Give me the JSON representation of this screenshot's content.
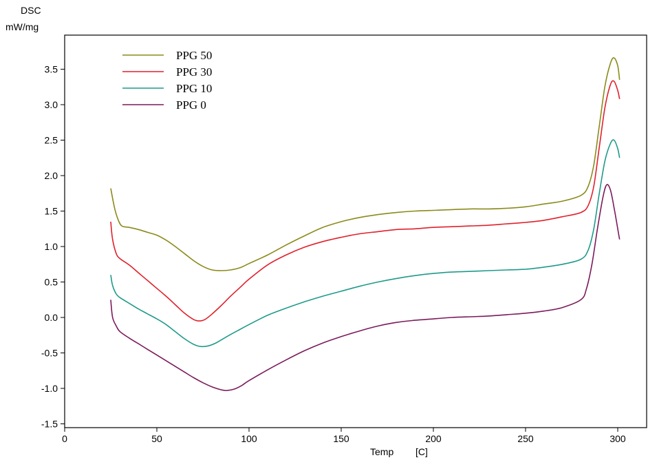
{
  "chart_data": {
    "type": "line",
    "ylabel_line1": "DSC",
    "ylabel_line2": "mW/mg",
    "xlabel_left": "Temp",
    "xlabel_unit": "[C]",
    "xlim": [
      0,
      320
    ],
    "ylim": [
      -1.55,
      3.95
    ],
    "xticks": [
      0,
      50,
      100,
      150,
      200,
      250,
      300
    ],
    "yticks": [
      -1.5,
      -1.0,
      -0.5,
      0.0,
      0.5,
      1.0,
      1.5,
      2.0,
      2.5,
      3.0,
      3.5
    ],
    "ytick_labels": [
      "-1.5",
      "-1.0",
      "-0.5",
      "0.0",
      "0.5",
      "1.0",
      "1.5",
      "2.0",
      "2.5",
      "3.0",
      "3.5"
    ],
    "grid": false,
    "legend_position": "top-left",
    "series": [
      {
        "name": "PPG 50",
        "color": "#8a8a1a",
        "points": [
          [
            25,
            1.82
          ],
          [
            27,
            1.55
          ],
          [
            29,
            1.38
          ],
          [
            31,
            1.29
          ],
          [
            35,
            1.27
          ],
          [
            40,
            1.24
          ],
          [
            45,
            1.2
          ],
          [
            50,
            1.16
          ],
          [
            55,
            1.09
          ],
          [
            60,
            1.0
          ],
          [
            65,
            0.9
          ],
          [
            70,
            0.8
          ],
          [
            75,
            0.72
          ],
          [
            80,
            0.67
          ],
          [
            85,
            0.66
          ],
          [
            90,
            0.67
          ],
          [
            95,
            0.7
          ],
          [
            100,
            0.76
          ],
          [
            110,
            0.88
          ],
          [
            120,
            1.02
          ],
          [
            130,
            1.15
          ],
          [
            140,
            1.27
          ],
          [
            150,
            1.35
          ],
          [
            160,
            1.41
          ],
          [
            170,
            1.45
          ],
          [
            180,
            1.48
          ],
          [
            190,
            1.5
          ],
          [
            200,
            1.51
          ],
          [
            210,
            1.52
          ],
          [
            220,
            1.53
          ],
          [
            230,
            1.53
          ],
          [
            240,
            1.54
          ],
          [
            250,
            1.56
          ],
          [
            260,
            1.6
          ],
          [
            270,
            1.64
          ],
          [
            280,
            1.72
          ],
          [
            284,
            1.85
          ],
          [
            287,
            2.15
          ],
          [
            290,
            2.7
          ],
          [
            293,
            3.25
          ],
          [
            296,
            3.58
          ],
          [
            298,
            3.66
          ],
          [
            300,
            3.55
          ],
          [
            301,
            3.35
          ]
        ]
      },
      {
        "name": "PPG 30",
        "color": "#e0202a",
        "points": [
          [
            25,
            1.35
          ],
          [
            26,
            1.1
          ],
          [
            28,
            0.9
          ],
          [
            30,
            0.83
          ],
          [
            35,
            0.74
          ],
          [
            40,
            0.63
          ],
          [
            45,
            0.52
          ],
          [
            50,
            0.41
          ],
          [
            55,
            0.3
          ],
          [
            60,
            0.18
          ],
          [
            65,
            0.06
          ],
          [
            70,
            -0.03
          ],
          [
            73,
            -0.05
          ],
          [
            76,
            -0.03
          ],
          [
            80,
            0.05
          ],
          [
            85,
            0.17
          ],
          [
            90,
            0.3
          ],
          [
            95,
            0.42
          ],
          [
            100,
            0.54
          ],
          [
            110,
            0.74
          ],
          [
            120,
            0.88
          ],
          [
            130,
            0.99
          ],
          [
            140,
            1.07
          ],
          [
            150,
            1.13
          ],
          [
            160,
            1.18
          ],
          [
            170,
            1.21
          ],
          [
            180,
            1.24
          ],
          [
            190,
            1.25
          ],
          [
            200,
            1.27
          ],
          [
            210,
            1.28
          ],
          [
            220,
            1.29
          ],
          [
            230,
            1.3
          ],
          [
            240,
            1.32
          ],
          [
            250,
            1.34
          ],
          [
            260,
            1.37
          ],
          [
            270,
            1.42
          ],
          [
            280,
            1.48
          ],
          [
            284,
            1.58
          ],
          [
            287,
            1.85
          ],
          [
            290,
            2.4
          ],
          [
            293,
            2.95
          ],
          [
            296,
            3.28
          ],
          [
            298,
            3.33
          ],
          [
            300,
            3.2
          ],
          [
            301,
            3.08
          ]
        ]
      },
      {
        "name": "PPG 10",
        "color": "#1e9a8a",
        "points": [
          [
            25,
            0.6
          ],
          [
            26,
            0.45
          ],
          [
            28,
            0.33
          ],
          [
            30,
            0.28
          ],
          [
            35,
            0.2
          ],
          [
            40,
            0.12
          ],
          [
            45,
            0.05
          ],
          [
            50,
            -0.02
          ],
          [
            55,
            -0.1
          ],
          [
            60,
            -0.2
          ],
          [
            65,
            -0.3
          ],
          [
            70,
            -0.38
          ],
          [
            74,
            -0.41
          ],
          [
            78,
            -0.4
          ],
          [
            82,
            -0.36
          ],
          [
            86,
            -0.3
          ],
          [
            90,
            -0.24
          ],
          [
            95,
            -0.17
          ],
          [
            100,
            -0.1
          ],
          [
            110,
            0.03
          ],
          [
            120,
            0.13
          ],
          [
            130,
            0.22
          ],
          [
            140,
            0.3
          ],
          [
            150,
            0.37
          ],
          [
            160,
            0.44
          ],
          [
            170,
            0.5
          ],
          [
            180,
            0.55
          ],
          [
            190,
            0.59
          ],
          [
            200,
            0.62
          ],
          [
            210,
            0.64
          ],
          [
            220,
            0.65
          ],
          [
            230,
            0.66
          ],
          [
            240,
            0.67
          ],
          [
            250,
            0.68
          ],
          [
            260,
            0.71
          ],
          [
            270,
            0.75
          ],
          [
            280,
            0.82
          ],
          [
            284,
            0.95
          ],
          [
            287,
            1.25
          ],
          [
            290,
            1.75
          ],
          [
            293,
            2.2
          ],
          [
            296,
            2.45
          ],
          [
            298,
            2.5
          ],
          [
            300,
            2.38
          ],
          [
            301,
            2.25
          ]
        ]
      },
      {
        "name": "PPG 0",
        "color": "#7a1a5a",
        "points": [
          [
            25,
            0.25
          ],
          [
            26,
            0.0
          ],
          [
            28,
            -0.12
          ],
          [
            30,
            -0.2
          ],
          [
            35,
            -0.29
          ],
          [
            40,
            -0.37
          ],
          [
            45,
            -0.45
          ],
          [
            50,
            -0.53
          ],
          [
            55,
            -0.61
          ],
          [
            60,
            -0.69
          ],
          [
            65,
            -0.77
          ],
          [
            70,
            -0.85
          ],
          [
            75,
            -0.92
          ],
          [
            80,
            -0.98
          ],
          [
            85,
            -1.02
          ],
          [
            88,
            -1.03
          ],
          [
            92,
            -1.01
          ],
          [
            96,
            -0.96
          ],
          [
            100,
            -0.89
          ],
          [
            110,
            -0.74
          ],
          [
            120,
            -0.6
          ],
          [
            130,
            -0.47
          ],
          [
            140,
            -0.36
          ],
          [
            150,
            -0.27
          ],
          [
            160,
            -0.19
          ],
          [
            170,
            -0.12
          ],
          [
            180,
            -0.07
          ],
          [
            190,
            -0.04
          ],
          [
            200,
            -0.02
          ],
          [
            210,
            0.0
          ],
          [
            220,
            0.01
          ],
          [
            230,
            0.02
          ],
          [
            240,
            0.04
          ],
          [
            250,
            0.06
          ],
          [
            260,
            0.09
          ],
          [
            270,
            0.14
          ],
          [
            280,
            0.25
          ],
          [
            283,
            0.4
          ],
          [
            286,
            0.75
          ],
          [
            289,
            1.25
          ],
          [
            292,
            1.7
          ],
          [
            294,
            1.87
          ],
          [
            296,
            1.8
          ],
          [
            298,
            1.55
          ],
          [
            300,
            1.25
          ],
          [
            301,
            1.1
          ]
        ]
      }
    ]
  }
}
